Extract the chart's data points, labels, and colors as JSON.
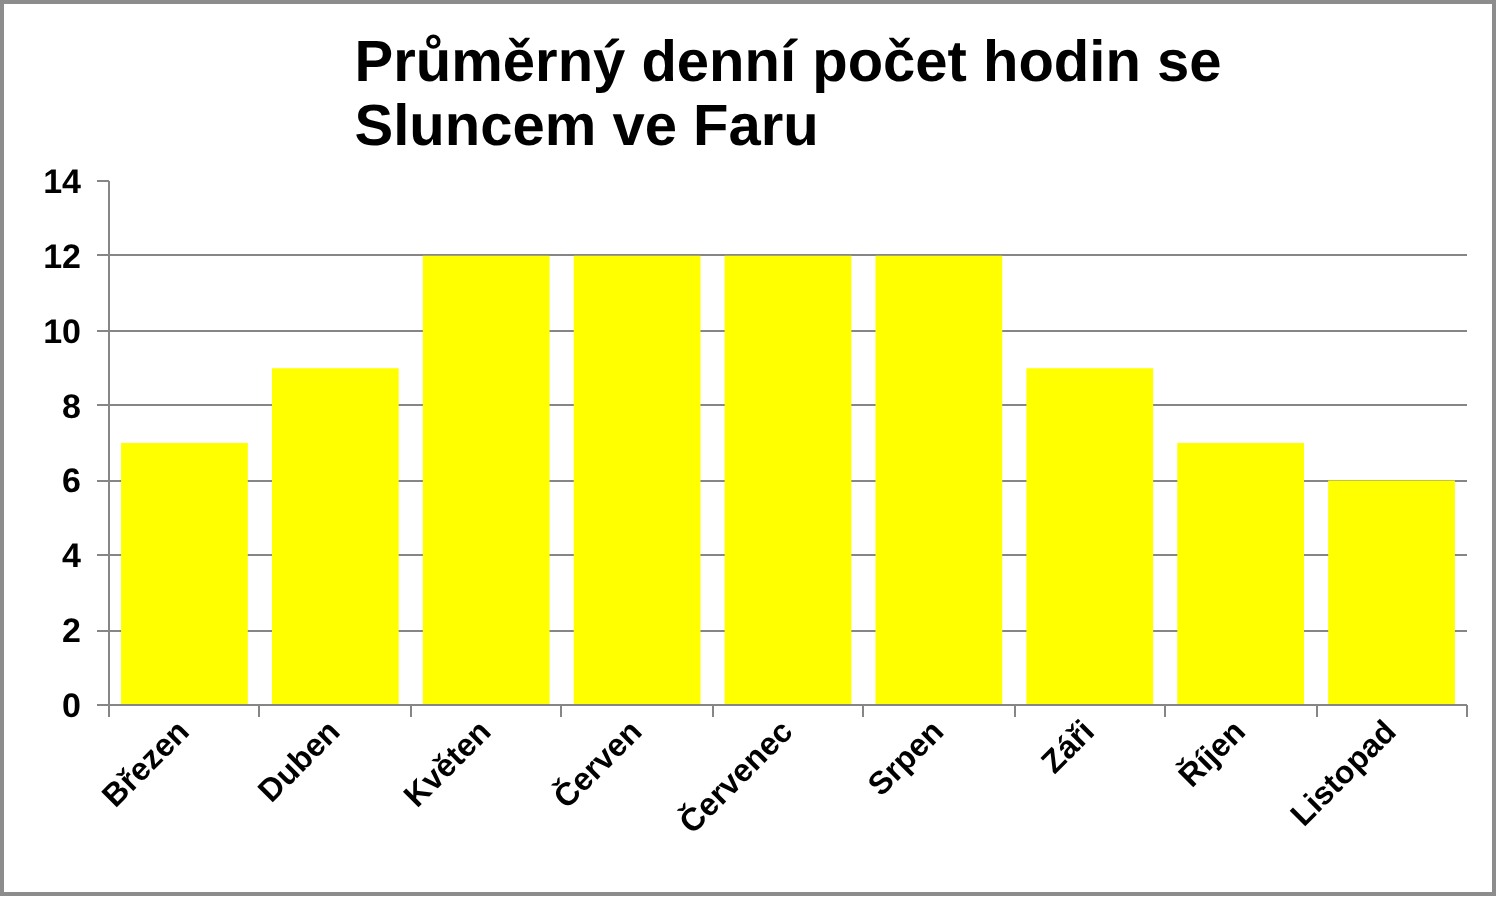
{
  "chart_data": {
    "type": "bar",
    "title": "Průměrný denní počet hodin se Sluncem ve Faru",
    "categories": [
      "Březen",
      "Duben",
      "Květen",
      "Červen",
      "Červenec",
      "Srpen",
      "Záři",
      "Říjen",
      "Listopad"
    ],
    "values": [
      7,
      9,
      12,
      12,
      12,
      12,
      9,
      7,
      6
    ],
    "color": "#ffff00",
    "ylim": [
      0,
      14
    ],
    "yticks": [
      0,
      2,
      4,
      6,
      8,
      10,
      12,
      14
    ],
    "grid": "y"
  }
}
